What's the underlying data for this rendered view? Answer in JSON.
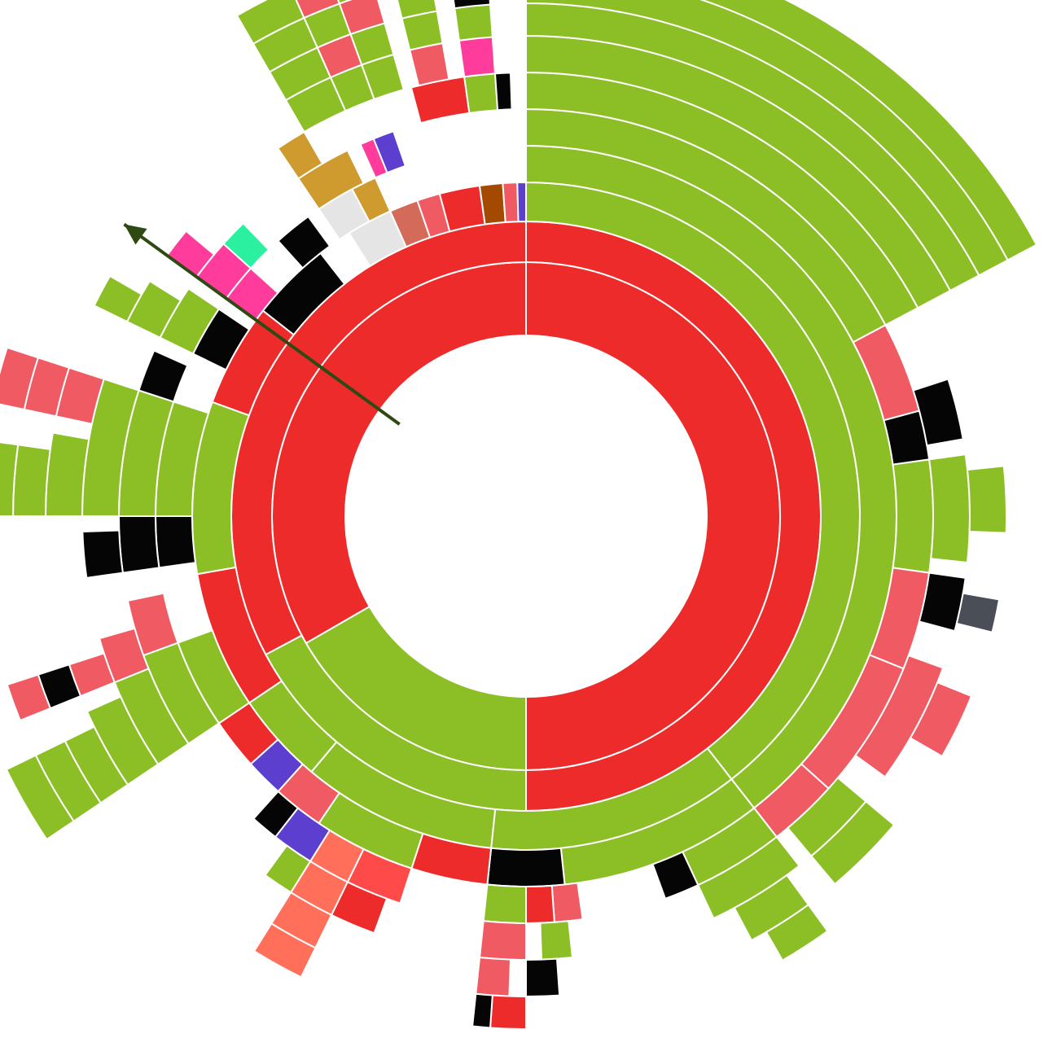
{
  "chart_data": {
    "type": "sunburst",
    "title": "",
    "grid": false,
    "legend": "none",
    "colors": {
      "green": "#8cbf26",
      "red": "#ed2b2b",
      "salmon": "#f05a63",
      "black": "#050505",
      "lightgray": "#e5e5e5",
      "terracotta": "#d46b5a",
      "brown": "#a44a00",
      "purple": "#5c3fcf",
      "gold": "#cf9a2e",
      "pink": "#ff3c9c",
      "teal": "#2bf0a0",
      "orange": "#ff8c1a",
      "slate": "#4a4f57",
      "blue": "#0b5ac4",
      "lightorange": "#f7a35c",
      "coral": "#ff6f5a",
      "softgreen": "#6cc24a",
      "tomato": "#ff4a4a",
      "arrow": "#2e4a12"
    },
    "arrow": {
      "angle_deg": -54,
      "from_radius_ring": 0,
      "to_radius_ring": 7
    },
    "rings": [
      [
        {
          "start": -120,
          "end": 180,
          "color": "red"
        },
        {
          "start": 180,
          "end": 240,
          "color": "green"
        },
        {
          "start": 240,
          "end": 360,
          "color": "red"
        }
      ],
      [
        {
          "start": -120,
          "end": 180,
          "color": "red"
        },
        {
          "start": 180,
          "end": 242,
          "color": "green"
        },
        {
          "start": 242,
          "end": 360,
          "color": "red"
        }
      ],
      [
        {
          "start": 0,
          "end": 142,
          "color": "green"
        },
        {
          "start": 142,
          "end": 186,
          "color": "green"
        },
        {
          "start": 186,
          "end": 220,
          "color": "green"
        },
        {
          "start": 220,
          "end": 236,
          "color": "green"
        },
        {
          "start": 236,
          "end": 260,
          "color": "red"
        },
        {
          "start": 260,
          "end": 290,
          "color": "green"
        },
        {
          "start": 290,
          "end": 308,
          "color": "red"
        },
        {
          "start": 308,
          "end": 322,
          "color": "black"
        },
        {
          "start": 328,
          "end": 336,
          "color": "lightgray"
        },
        {
          "start": 336,
          "end": 341,
          "color": "terracotta"
        },
        {
          "start": 341,
          "end": 345,
          "color": "salmon"
        },
        {
          "start": 345,
          "end": 352,
          "color": "red"
        },
        {
          "start": 352,
          "end": 356,
          "color": "brown"
        },
        {
          "start": 356,
          "end": 358.5,
          "color": "salmon"
        },
        {
          "start": 358.5,
          "end": 360,
          "color": "purple"
        }
      ],
      [
        {
          "start": 0,
          "end": 142,
          "color": "green"
        },
        {
          "start": 142,
          "end": 174,
          "color": "green"
        },
        {
          "start": 174,
          "end": 186,
          "color": "black"
        },
        {
          "start": 186,
          "end": 198,
          "color": "red"
        },
        {
          "start": 198,
          "end": 214,
          "color": "green"
        },
        {
          "start": 214,
          "end": 222,
          "color": "salmon"
        },
        {
          "start": 222,
          "end": 228,
          "color": "purple"
        },
        {
          "start": 228,
          "end": 236,
          "color": "red"
        },
        {
          "start": 236,
          "end": 250,
          "color": "green"
        },
        {
          "start": 262,
          "end": 270,
          "color": "black"
        },
        {
          "start": 270,
          "end": 288,
          "color": "green"
        },
        {
          "start": 296,
          "end": 304,
          "color": "black"
        },
        {
          "start": 306,
          "end": 312,
          "color": "pink"
        },
        {
          "start": 318,
          "end": 324,
          "color": "black"
        },
        {
          "start": 326,
          "end": 332,
          "color": "lightgray"
        },
        {
          "start": 332,
          "end": 336,
          "color": "gold"
        }
      ],
      [
        {
          "start": 0,
          "end": 62,
          "color": "green"
        },
        {
          "start": 62,
          "end": 75,
          "color": "salmon"
        },
        {
          "start": 75,
          "end": 82,
          "color": "black"
        },
        {
          "start": 82,
          "end": 98,
          "color": "green"
        },
        {
          "start": 98,
          "end": 112,
          "color": "salmon"
        },
        {
          "start": 112,
          "end": 132,
          "color": "salmon"
        },
        {
          "start": 132,
          "end": 142,
          "color": "salmon"
        },
        {
          "start": 142,
          "end": 155,
          "color": "green"
        },
        {
          "start": 155,
          "end": 160,
          "color": "black"
        },
        {
          "start": 172,
          "end": 176,
          "color": "salmon"
        },
        {
          "start": 176,
          "end": 180,
          "color": "red"
        },
        {
          "start": 180,
          "end": 186,
          "color": "green"
        },
        {
          "start": 198,
          "end": 206,
          "color": "tomato"
        },
        {
          "start": 206,
          "end": 212,
          "color": "coral"
        },
        {
          "start": 212,
          "end": 218,
          "color": "purple"
        },
        {
          "start": 218,
          "end": 222,
          "color": "black"
        },
        {
          "start": 236,
          "end": 250,
          "color": "green"
        },
        {
          "start": 250,
          "end": 258,
          "color": "salmon"
        },
        {
          "start": 262,
          "end": 270,
          "color": "black"
        },
        {
          "start": 270,
          "end": 288,
          "color": "green"
        },
        {
          "start": 288,
          "end": 294,
          "color": "black"
        },
        {
          "start": 296,
          "end": 304,
          "color": "green"
        },
        {
          "start": 306,
          "end": 312,
          "color": "pink"
        },
        {
          "start": 312,
          "end": 316,
          "color": "teal"
        },
        {
          "start": 326,
          "end": 334,
          "color": "gold"
        },
        {
          "start": 336,
          "end": 338,
          "color": "pink"
        },
        {
          "start": 338,
          "end": 341,
          "color": "purple"
        }
      ],
      [
        {
          "start": 0,
          "end": 62,
          "color": "green"
        },
        {
          "start": 72,
          "end": 80,
          "color": "black"
        },
        {
          "start": 82,
          "end": 96,
          "color": "green"
        },
        {
          "start": 98,
          "end": 105,
          "color": "black"
        },
        {
          "start": 110,
          "end": 126,
          "color": "salmon"
        },
        {
          "start": 130,
          "end": 140,
          "color": "green"
        },
        {
          "start": 142,
          "end": 155,
          "color": "green"
        },
        {
          "start": 174,
          "end": 178,
          "color": "green"
        },
        {
          "start": 180,
          "end": 186,
          "color": "salmon"
        },
        {
          "start": 200,
          "end": 206,
          "color": "red"
        },
        {
          "start": 206,
          "end": 212,
          "color": "coral"
        },
        {
          "start": 212,
          "end": 216,
          "color": "green"
        },
        {
          "start": 236,
          "end": 248,
          "color": "green"
        },
        {
          "start": 248,
          "end": 254,
          "color": "salmon"
        },
        {
          "start": 262,
          "end": 268,
          "color": "black"
        },
        {
          "start": 270,
          "end": 288,
          "color": "green"
        },
        {
          "start": 296,
          "end": 302,
          "color": "green"
        },
        {
          "start": 306,
          "end": 310,
          "color": "pink"
        },
        {
          "start": 326,
          "end": 330,
          "color": "gold"
        },
        {
          "start": 345,
          "end": 352,
          "color": "red"
        },
        {
          "start": 352,
          "end": 356,
          "color": "green"
        },
        {
          "start": 356,
          "end": 358,
          "color": "black"
        }
      ],
      [
        {
          "start": 0,
          "end": 62,
          "color": "green"
        },
        {
          "start": 84,
          "end": 92,
          "color": "green"
        },
        {
          "start": 100,
          "end": 104,
          "color": "slate"
        },
        {
          "start": 112,
          "end": 120,
          "color": "salmon"
        },
        {
          "start": 130,
          "end": 140,
          "color": "green"
        },
        {
          "start": 144,
          "end": 152,
          "color": "green"
        },
        {
          "start": 176,
          "end": 180,
          "color": "black"
        },
        {
          "start": 182,
          "end": 186,
          "color": "salmon"
        },
        {
          "start": 206,
          "end": 212,
          "color": "coral"
        },
        {
          "start": 236,
          "end": 246,
          "color": "green"
        },
        {
          "start": 248,
          "end": 252,
          "color": "salmon"
        },
        {
          "start": 270,
          "end": 280,
          "color": "green"
        },
        {
          "start": 282,
          "end": 288,
          "color": "salmon"
        },
        {
          "start": 296,
          "end": 300,
          "color": "green"
        },
        {
          "start": 330,
          "end": 336,
          "color": "green"
        },
        {
          "start": 336,
          "end": 340,
          "color": "green"
        },
        {
          "start": 340,
          "end": 344,
          "color": "green"
        },
        {
          "start": 346,
          "end": 350,
          "color": "salmon"
        },
        {
          "start": 352,
          "end": 356,
          "color": "pink"
        }
      ],
      [
        {
          "start": 0,
          "end": 62,
          "color": "green"
        },
        {
          "start": 144,
          "end": 150,
          "color": "green"
        },
        {
          "start": 180,
          "end": 184,
          "color": "red"
        },
        {
          "start": 184,
          "end": 186,
          "color": "black"
        },
        {
          "start": 206,
          "end": 212,
          "color": "coral"
        },
        {
          "start": 236,
          "end": 244,
          "color": "green"
        },
        {
          "start": 248,
          "end": 252,
          "color": "black"
        },
        {
          "start": 270,
          "end": 278,
          "color": "green"
        },
        {
          "start": 282,
          "end": 288,
          "color": "salmon"
        },
        {
          "start": 330,
          "end": 336,
          "color": "green"
        },
        {
          "start": 336,
          "end": 340,
          "color": "salmon"
        },
        {
          "start": 340,
          "end": 344,
          "color": "green"
        },
        {
          "start": 346,
          "end": 350,
          "color": "green"
        },
        {
          "start": 352,
          "end": 356,
          "color": "green"
        }
      ],
      [
        {
          "start": 0,
          "end": 62,
          "color": "green"
        },
        {
          "start": 236,
          "end": 244,
          "color": "green"
        },
        {
          "start": 248,
          "end": 252,
          "color": "salmon"
        },
        {
          "start": 270,
          "end": 278,
          "color": "green"
        },
        {
          "start": 282,
          "end": 288,
          "color": "salmon"
        },
        {
          "start": 330,
          "end": 336,
          "color": "green"
        },
        {
          "start": 336,
          "end": 340,
          "color": "green"
        },
        {
          "start": 340,
          "end": 344,
          "color": "salmon"
        },
        {
          "start": 346,
          "end": 350,
          "color": "green"
        },
        {
          "start": 352,
          "end": 356,
          "color": "black"
        }
      ],
      [
        {
          "start": 0,
          "end": 62,
          "color": "green"
        },
        {
          "start": 236,
          "end": 244,
          "color": "green"
        },
        {
          "start": 330,
          "end": 336,
          "color": "green"
        },
        {
          "start": 336,
          "end": 340,
          "color": "salmon"
        },
        {
          "start": 340,
          "end": 344,
          "color": "green"
        },
        {
          "start": 346,
          "end": 350,
          "color": "black"
        }
      ]
    ]
  }
}
